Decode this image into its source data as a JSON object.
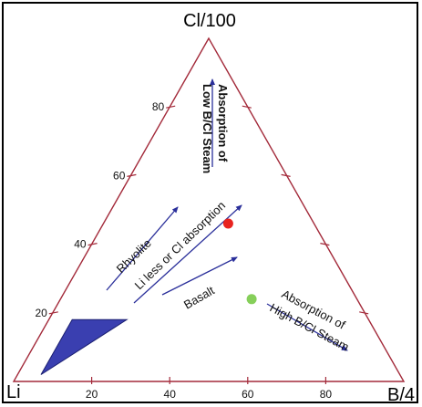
{
  "chart_data": {
    "type": "ternary",
    "title": "",
    "vertices": {
      "top": "Cl/100",
      "left": "Li",
      "right": "B/4"
    },
    "ticks": {
      "left_edge": [
        "20",
        "40",
        "60",
        "80"
      ],
      "bottom_edge": [
        "20",
        "40",
        "60",
        "80"
      ]
    },
    "region": {
      "name": "",
      "color": "#3a3fb0",
      "points": [
        {
          "Li": 92,
          "Cl": 2,
          "B": 6
        },
        {
          "Li": 76,
          "Cl": 18,
          "B": 6
        },
        {
          "Li": 62,
          "Cl": 18,
          "B": 20
        }
      ]
    },
    "points": [
      {
        "name": "",
        "color": "#e8231f",
        "Li": 22,
        "Cl": 46,
        "B": 32
      },
      {
        "name": "",
        "color": "#86cf5a",
        "Li": 27,
        "Cl": 24,
        "B": 49
      }
    ],
    "annotations": [
      {
        "text": "Rhyolite",
        "color": "#2a2f9a"
      },
      {
        "text": "Li less or Cl absorption",
        "color": "#2a2f9a"
      },
      {
        "text": "Basalt",
        "color": "#2a2f9a"
      },
      {
        "text_line1": "Absorption of",
        "text_line2": "Low B/Cl Steam",
        "color": "#2a2f9a"
      },
      {
        "text_line1": "Absorption of",
        "text_line2": "High B/Cl Steam",
        "color": "#2a2f9a"
      }
    ],
    "colors": {
      "axis": "#a32a3a",
      "arrow": "#2a2f9a"
    }
  }
}
